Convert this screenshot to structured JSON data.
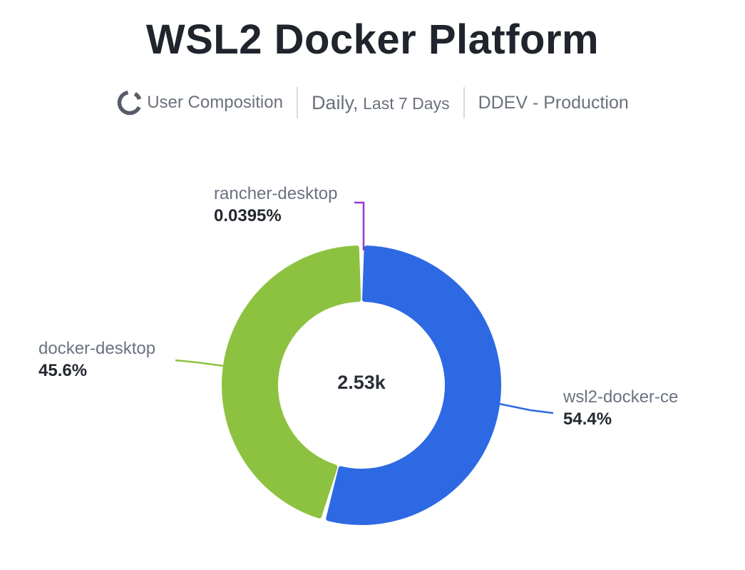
{
  "header": {
    "title": "WSL2 Docker Platform"
  },
  "subtitle": {
    "metric_label": "User Composition",
    "metric_icon": "donut-chart-icon",
    "period_primary": "Daily,",
    "period_secondary": "Last 7 Days",
    "site_label": "DDEV - Production"
  },
  "colors": {
    "background": "#ffffff",
    "title_text": "#20242c",
    "subtitle_text": "#6a717c",
    "label_name_text": "#6b7280",
    "label_pct_text": "#24282f",
    "divider": "#d7dade",
    "icon_gray": "#575d68"
  },
  "chart_data": {
    "type": "pie",
    "subtype": "donut",
    "title": "WSL2 Docker Platform",
    "center_total": "2.53k",
    "legend_position": "callout-labels",
    "series": [
      {
        "name": "rancher-desktop",
        "value_pct": 0.0395,
        "pct_label": "0.0395%",
        "color": "#9a35d2"
      },
      {
        "name": "wsl2-docker-ce",
        "value_pct": 54.4,
        "pct_label": "54.4%",
        "color": "#2d69e3"
      },
      {
        "name": "docker-desktop",
        "value_pct": 45.6,
        "pct_label": "45.6%",
        "color": "#8dc241"
      }
    ]
  }
}
